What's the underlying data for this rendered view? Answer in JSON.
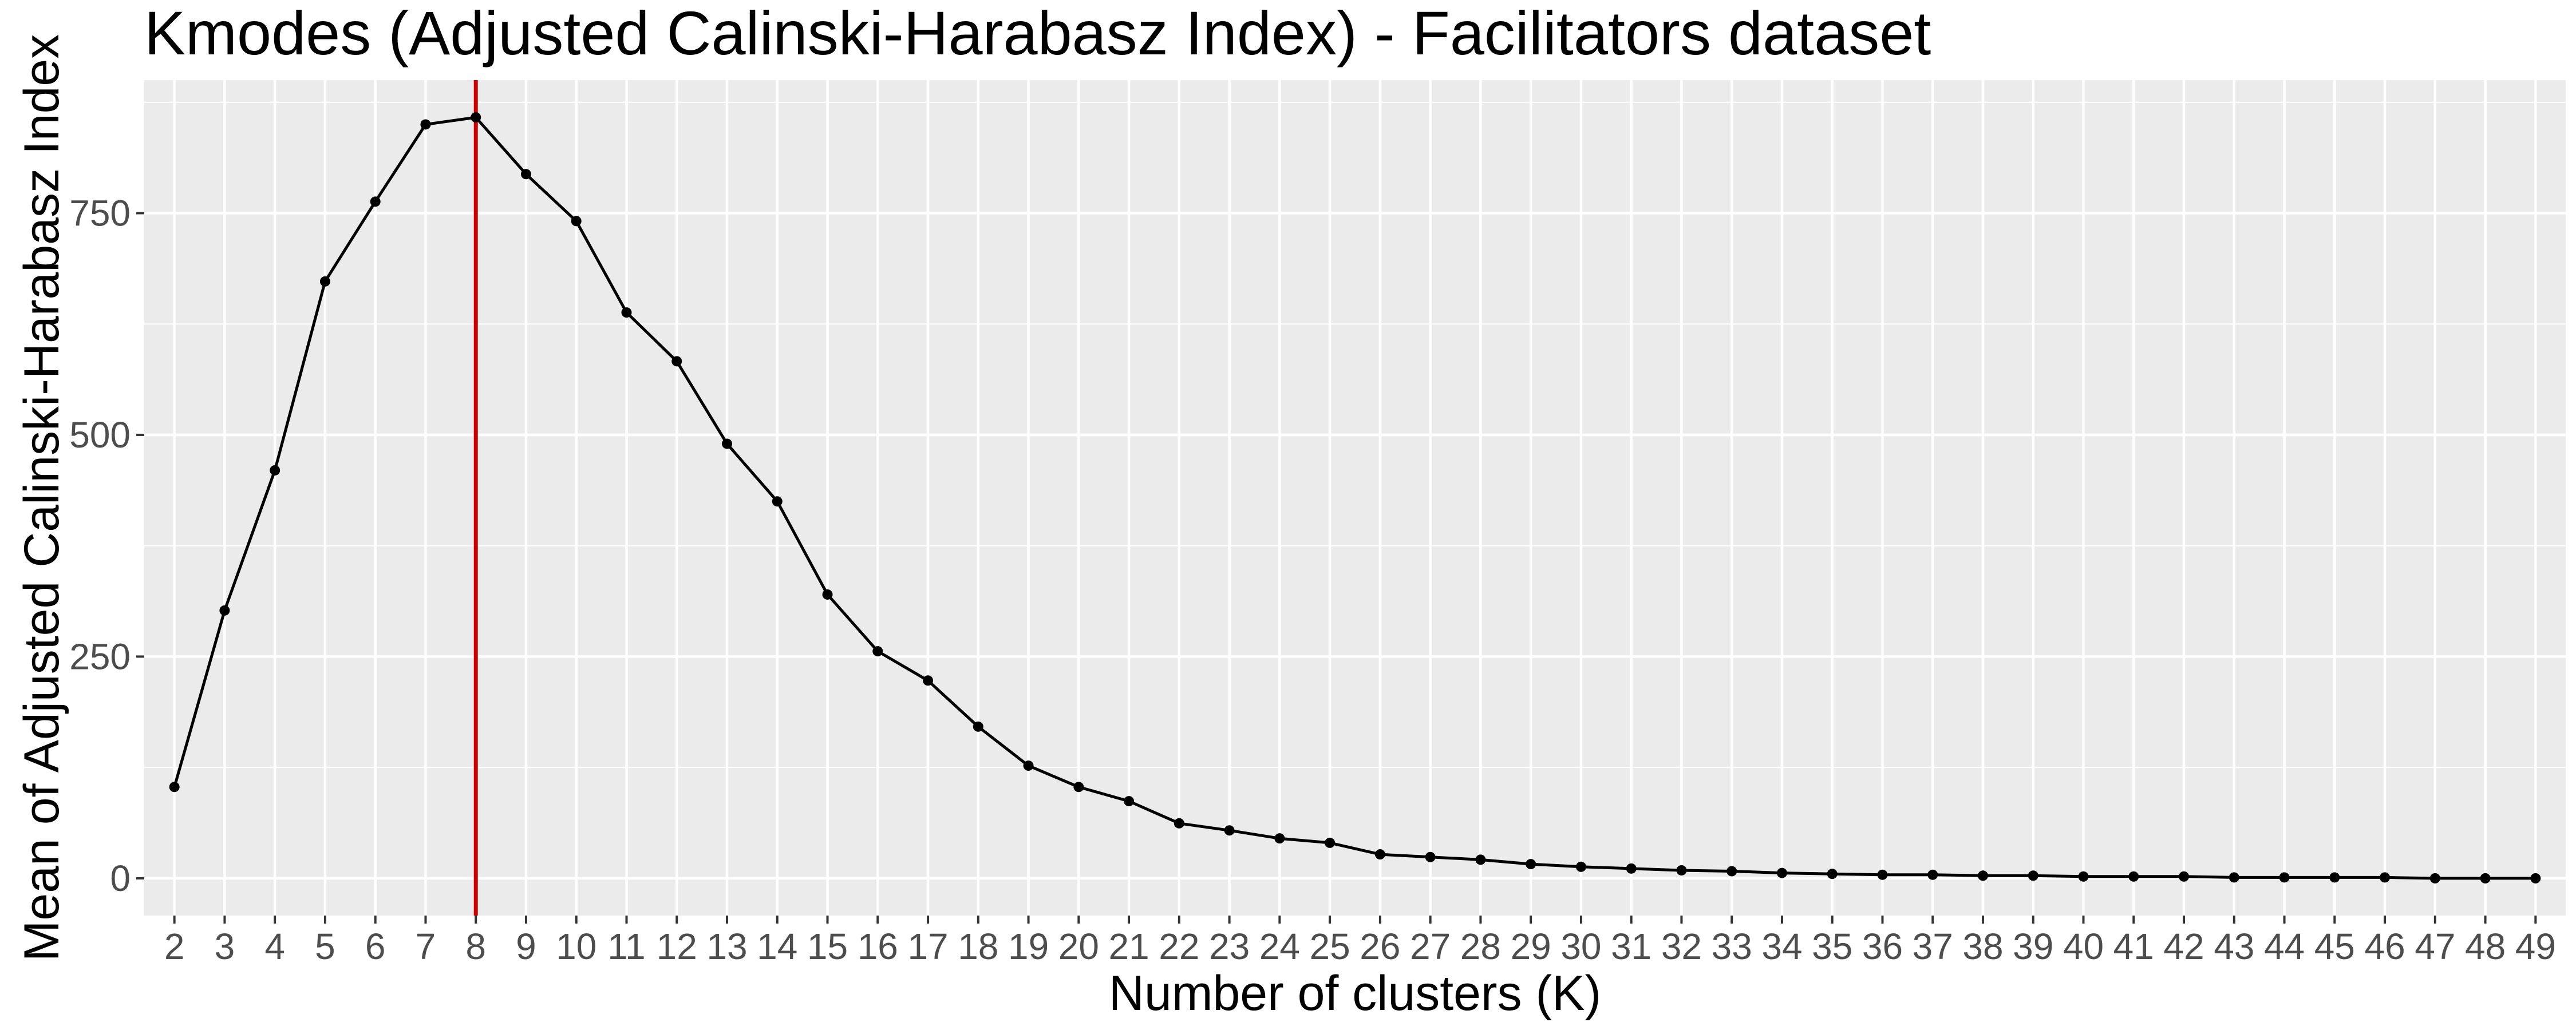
{
  "chart_data": {
    "type": "line",
    "title": "Kmodes (Adjusted Calinski-Harabasz Index) - Facilitators dataset",
    "xlabel": "Number of clusters (K)",
    "ylabel": "Mean of Adjusted Calinski-Harabasz Index",
    "x": [
      2,
      3,
      4,
      5,
      6,
      7,
      8,
      9,
      10,
      11,
      12,
      13,
      14,
      15,
      16,
      17,
      18,
      19,
      20,
      21,
      22,
      23,
      24,
      25,
      26,
      27,
      28,
      29,
      30,
      31,
      32,
      33,
      34,
      35,
      36,
      37,
      38,
      39,
      40,
      41,
      42,
      43,
      44,
      45,
      46,
      47,
      48,
      49
    ],
    "series": [
      {
        "values": [
          103,
          302,
          460,
          673,
          763,
          850,
          858,
          794,
          741,
          638,
          583,
          490,
          425,
          320,
          256,
          223,
          171,
          127,
          103,
          87,
          62,
          54,
          45,
          40,
          27,
          24,
          21,
          16,
          13,
          11,
          9,
          8,
          6,
          5,
          4,
          4,
          3,
          3,
          2,
          2,
          2,
          1,
          1,
          1,
          1,
          0,
          0,
          0
        ],
        "color": "#000000"
      }
    ],
    "xlim": [
      1.4,
      49.6
    ],
    "ylim": [
      -42,
      900
    ],
    "y_ticks": [
      0,
      250,
      500,
      750
    ],
    "x_tick_labels": [
      "2",
      "3",
      "4",
      "5",
      "6",
      "7",
      "8",
      "9",
      "10",
      "11",
      "12",
      "13",
      "14",
      "15",
      "16",
      "17",
      "18",
      "19",
      "20",
      "21",
      "22",
      "23",
      "24",
      "25",
      "26",
      "27",
      "28",
      "29",
      "30",
      "31",
      "32",
      "33",
      "34",
      "35",
      "36",
      "37",
      "38",
      "39",
      "40",
      "41",
      "42",
      "43",
      "44",
      "45",
      "46",
      "47",
      "48",
      "49"
    ],
    "y_tick_labels": [
      "0",
      "250",
      "500",
      "750"
    ],
    "reference_line": {
      "x": 8,
      "color": "#cc0000"
    },
    "grid": true,
    "panel_background": "#ebebeb",
    "grid_color": "#ffffff",
    "legend": "none"
  }
}
